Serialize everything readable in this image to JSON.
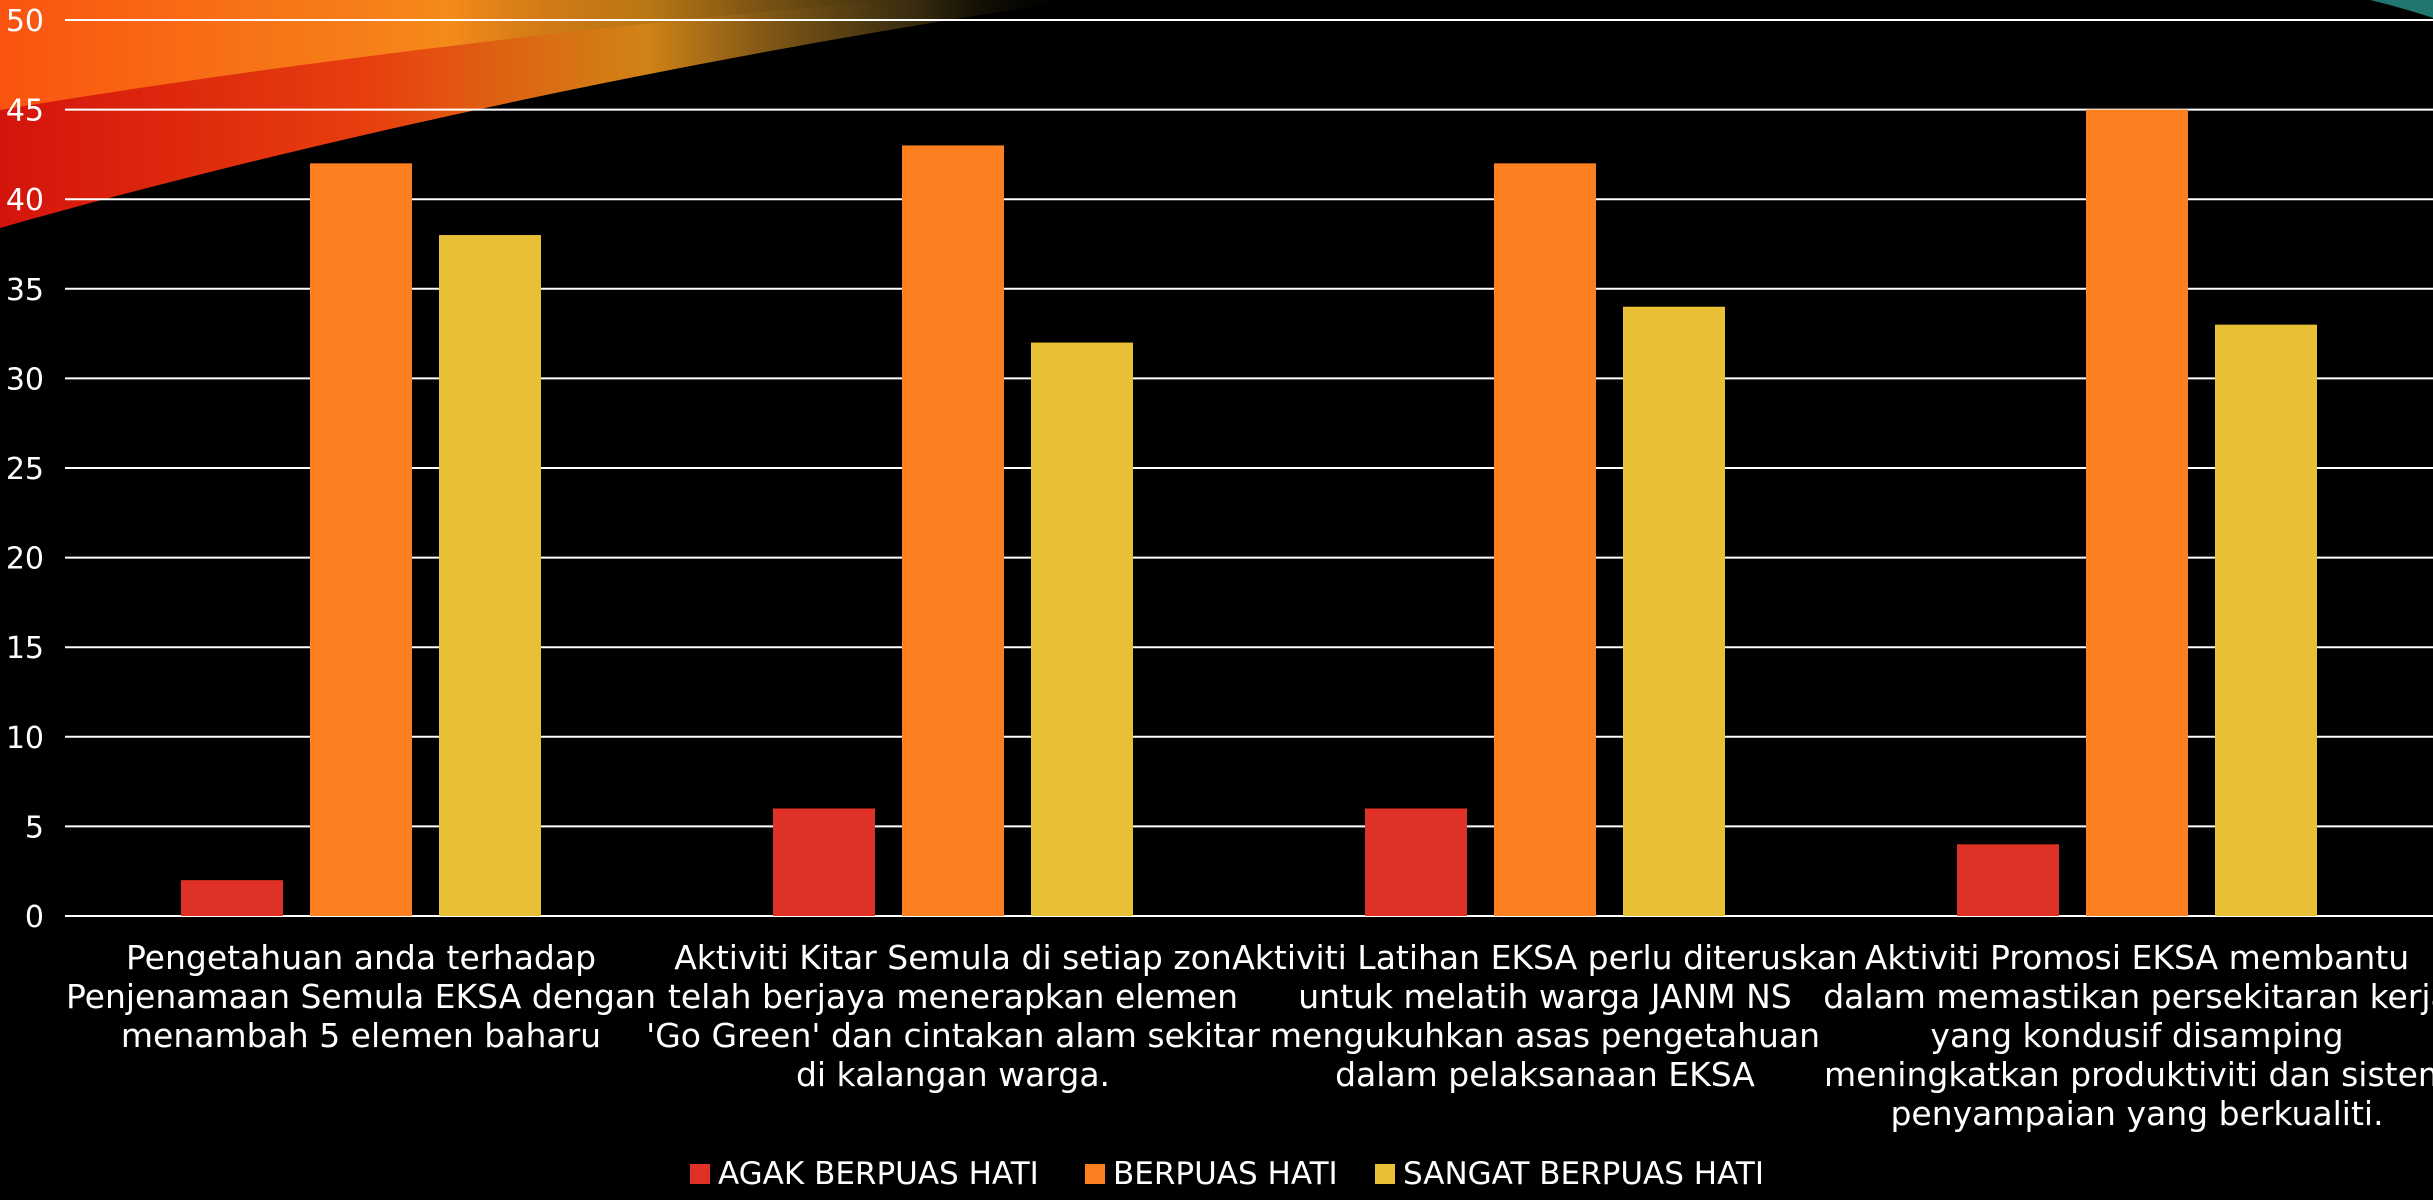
{
  "chart_data": {
    "type": "bar",
    "title": "",
    "xlabel": "",
    "ylabel": "",
    "ylim": [
      0,
      50
    ],
    "yticks": [
      0,
      5,
      10,
      15,
      20,
      25,
      30,
      35,
      40,
      45,
      50
    ],
    "grid": true,
    "legend_position": "bottom",
    "categories": [
      [
        "Pengetahuan anda terhadap",
        "Penjenamaan Semula EKSA dengan",
        "menambah 5 elemen baharu"
      ],
      [
        "Aktiviti Kitar Semula di setiap zon",
        "telah berjaya menerapkan elemen",
        "'Go Green' dan cintakan alam sekitar",
        "di kalangan warga."
      ],
      [
        "Aktiviti Latihan EKSA perlu diteruskan",
        "untuk melatih warga JANM NS",
        "mengukuhkan asas pengetahuan",
        "dalam pelaksanaan EKSA"
      ],
      [
        "Aktiviti Promosi EKSA membantu",
        "dalam memastikan persekitaran kerja",
        "yang kondusif disamping",
        "meningkatkan produktiviti dan sistem",
        "penyampaian yang berkualiti."
      ]
    ],
    "series": [
      {
        "name": "AGAK BERPUAS HATI",
        "color": "#E03127",
        "values": [
          2,
          6,
          6,
          4
        ]
      },
      {
        "name": "BERPUAS HATI",
        "color": "#FD8020",
        "values": [
          42,
          43,
          42,
          45
        ]
      },
      {
        "name": "SANGAT BERPUAS HATI",
        "color": "#E9BF35",
        "values": [
          38,
          32,
          34,
          33
        ]
      }
    ]
  }
}
